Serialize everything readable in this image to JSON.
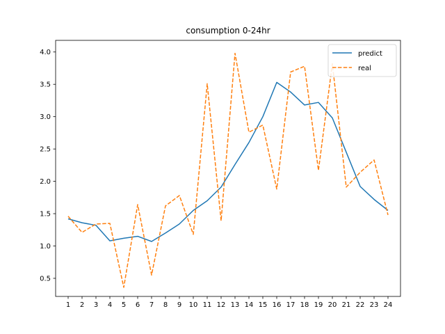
{
  "chart_data": {
    "type": "line",
    "title": "consumption 0-24hr",
    "xlabel": "",
    "ylabel": "",
    "categories": [
      "1",
      "2",
      "3",
      "4",
      "5",
      "6",
      "7",
      "8",
      "9",
      "10",
      "11",
      "12",
      "13",
      "14",
      "15",
      "16",
      "17",
      "18",
      "19",
      "20",
      "21",
      "22",
      "23",
      "24"
    ],
    "xlim": [
      0.1,
      24.9
    ],
    "ylim": [
      0.22,
      4.18
    ],
    "yticks": [
      "0.5",
      "1.0",
      "1.5",
      "2.0",
      "2.5",
      "3.0",
      "3.5",
      "4.0"
    ],
    "grid": false,
    "legend_position": "top-right",
    "series": [
      {
        "name": "predict",
        "color": "#1f77b4",
        "style": "solid",
        "values": [
          1.42,
          1.36,
          1.32,
          1.08,
          1.12,
          1.15,
          1.07,
          1.2,
          1.34,
          1.55,
          1.7,
          1.91,
          2.26,
          2.6,
          3.0,
          3.53,
          3.38,
          3.18,
          3.22,
          2.98,
          2.45,
          1.92,
          1.72,
          1.55
        ]
      },
      {
        "name": "real",
        "color": "#ff7f0e",
        "style": "dashed",
        "values": [
          1.46,
          1.21,
          1.34,
          1.35,
          0.36,
          1.64,
          0.55,
          1.62,
          1.78,
          1.18,
          3.51,
          1.39,
          3.98,
          2.76,
          2.87,
          1.88,
          3.69,
          3.78,
          2.17,
          3.82,
          1.91,
          2.14,
          2.33,
          1.48
        ]
      }
    ]
  }
}
